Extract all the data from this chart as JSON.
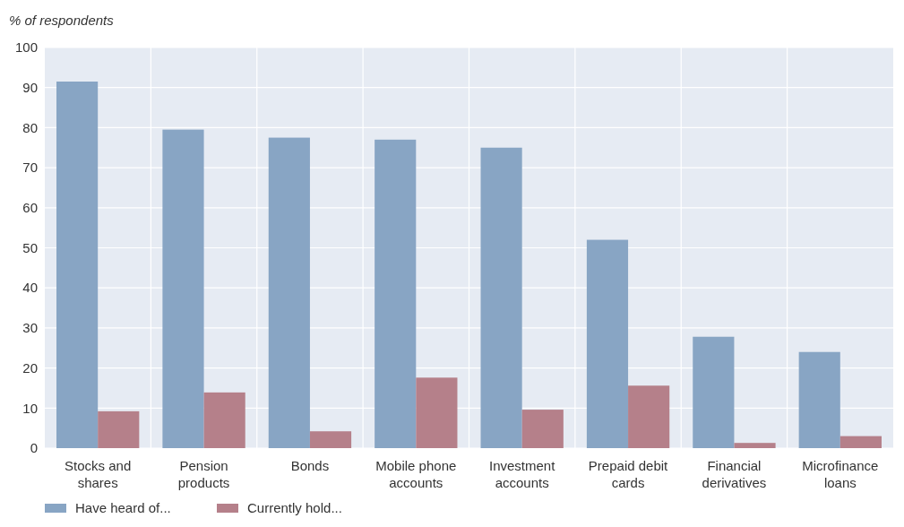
{
  "chart_data": {
    "type": "bar",
    "ylabel": "% of respondents",
    "categories": [
      "Stocks and shares",
      "Pension products",
      "Bonds",
      "Mobile phone accounts",
      "Investment accounts",
      "Prepaid debit cards",
      "Financial derivatives",
      "Microfinance loans"
    ],
    "series": [
      {
        "name": "Have heard of...",
        "color": "#88a5c4",
        "values": [
          91.5,
          79.5,
          77.5,
          77,
          75,
          52,
          27.8,
          24
        ]
      },
      {
        "name": "Currently hold...",
        "color": "#b5808a",
        "values": [
          9.2,
          13.9,
          4.2,
          17.6,
          9.6,
          15.6,
          1.3,
          3
        ]
      }
    ],
    "ylim": [
      0,
      100
    ],
    "yticks": [
      0,
      10,
      20,
      30,
      40,
      50,
      60,
      70,
      80,
      90,
      100
    ],
    "grid": true,
    "legend": "bottom left"
  }
}
